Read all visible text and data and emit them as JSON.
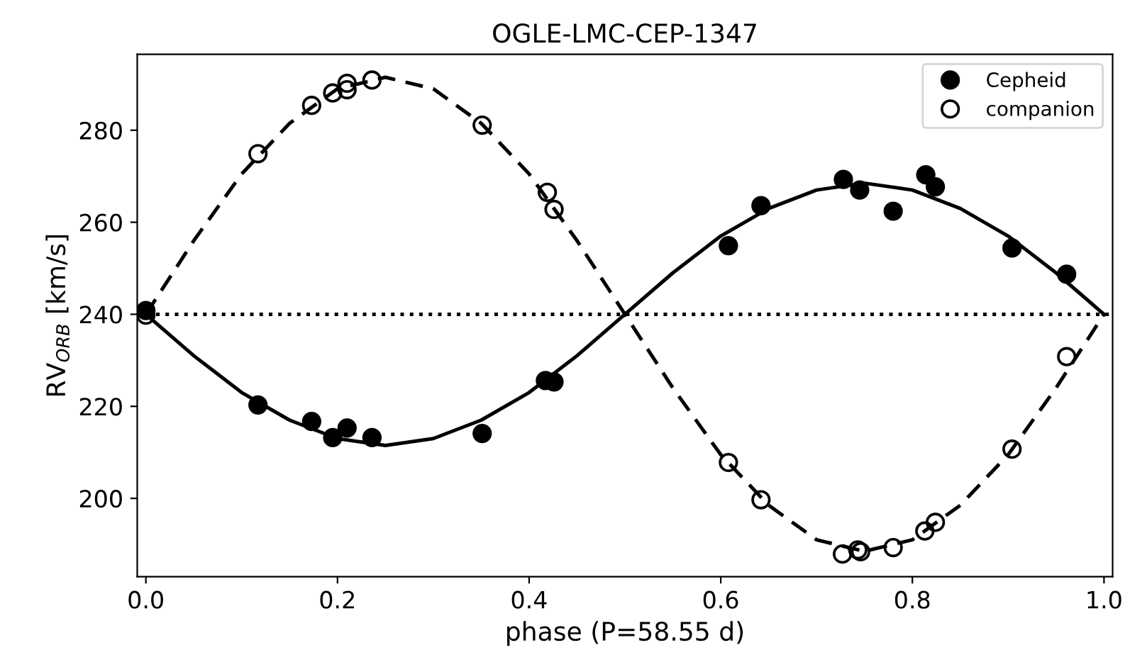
{
  "chart_data": {
    "type": "scatter",
    "title": "OGLE-LMC-CEP-1347",
    "xlabel": "phase (P=58.55 d)",
    "ylabel": "RV$_{ORB}$ [km/s]",
    "xlim": [
      -0.009,
      1.009
    ],
    "xticks": [
      {
        "value": 0,
        "label": "0.0"
      },
      0.2,
      0.4,
      0.6,
      0.8,
      {
        "value": 1,
        "label": "1.0"
      }
    ],
    "ylim": [
      183,
      296.5
    ],
    "yticks": [
      200,
      220,
      240,
      260,
      280
    ],
    "grid": false,
    "legend": "top right",
    "ref_lines": [
      {
        "axis": "y",
        "value": 240,
        "color": "#000000",
        "line_style": "dotted"
      }
    ],
    "series": [
      {
        "type": "line",
        "color": "#000000",
        "line_style": "solid",
        "marker": "none",
        "x": [
          0,
          0.05,
          0.1,
          0.15,
          0.2,
          0.25,
          0.3,
          0.35,
          0.4,
          0.45,
          0.5,
          0.55,
          0.6,
          0.65,
          0.7,
          0.75,
          0.8,
          0.85,
          0.9,
          0.95,
          1.0
        ],
        "values": [
          240,
          231,
          223,
          217,
          213,
          211.5,
          213,
          217,
          223,
          231,
          240,
          249,
          257,
          263,
          267,
          268.5,
          267,
          263,
          257,
          249,
          240
        ]
      },
      {
        "type": "line",
        "color": "#000000",
        "line_style": "dashed",
        "marker": "none",
        "x": [
          0,
          0.05,
          0.1,
          0.15,
          0.2,
          0.25,
          0.3,
          0.35,
          0.4,
          0.45,
          0.5,
          0.55,
          0.6,
          0.65,
          0.7,
          0.75,
          0.8,
          0.85,
          0.9,
          0.95,
          1.0
        ],
        "values": [
          240,
          256,
          270.5,
          281.5,
          289,
          291.5,
          289,
          281.5,
          270.5,
          256,
          240,
          224,
          209.5,
          198.5,
          191,
          188.5,
          191,
          198.5,
          209.5,
          224,
          240
        ]
      },
      {
        "name": "Cepheid",
        "color": "#000000",
        "marker": "circle",
        "x": [
          0.0,
          0.117,
          0.173,
          0.195,
          0.21,
          0.236,
          0.351,
          0.417,
          0.426,
          0.608,
          0.642,
          0.728,
          0.745,
          0.78,
          0.814,
          0.824,
          0.904,
          0.961
        ],
        "values": [
          240.8,
          220.3,
          216.7,
          213.2,
          215.3,
          213.2,
          214.1,
          225.6,
          225.3,
          254.9,
          263.6,
          269.3,
          267.0,
          262.4,
          270.3,
          267.7,
          254.4,
          248.7
        ]
      },
      {
        "name": "companion",
        "color": "#000000",
        "marker": "circle",
        "x": [
          0.0,
          0.117,
          0.173,
          0.195,
          0.21,
          0.21,
          0.236,
          0.351,
          0.419,
          0.426,
          0.608,
          0.642,
          0.727,
          0.743,
          0.746,
          0.78,
          0.813,
          0.824,
          0.904,
          0.961
        ],
        "values": [
          239.8,
          274.9,
          285.4,
          288.1,
          290.2,
          288.8,
          290.9,
          281.1,
          266.5,
          262.8,
          207.8,
          199.7,
          187.9,
          188.8,
          188.4,
          189.3,
          192.9,
          194.8,
          210.7,
          230.8
        ]
      }
    ]
  }
}
